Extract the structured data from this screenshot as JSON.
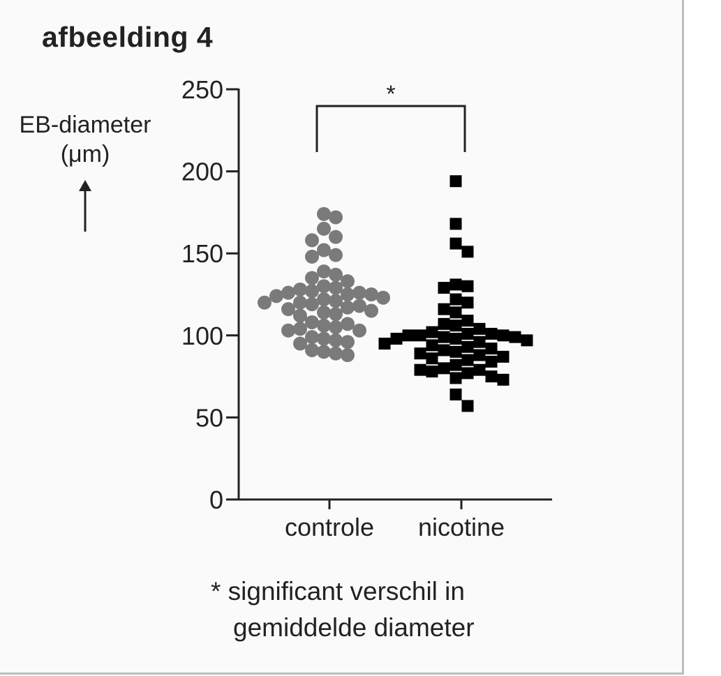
{
  "figure": {
    "title": "afbeelding 4",
    "footnote_line1": "* significant verschil in",
    "footnote_line2": "gemiddelde diameter"
  },
  "colors": {
    "controle": "#7a7a7a",
    "nicotine": "#000000",
    "text": "#222222"
  },
  "chart_data": {
    "type": "scatter",
    "ylabel_line1": "EB-diameter",
    "ylabel_line2": "(μm)",
    "ylim": [
      0,
      250
    ],
    "yticks": [
      0,
      50,
      100,
      150,
      200,
      250
    ],
    "categories": [
      "controle",
      "nicotine"
    ],
    "significance_label": "*",
    "series": [
      {
        "name": "controle",
        "marker": "circle",
        "values": [
          174,
          172,
          165,
          160,
          158,
          152,
          149,
          148,
          139,
          137,
          135,
          133,
          130,
          129,
          128,
          127,
          126,
          126,
          125,
          125,
          124,
          123,
          122,
          121,
          120,
          120,
          119,
          118,
          117,
          116,
          115,
          114,
          113,
          112,
          108,
          107,
          106,
          105,
          104,
          103,
          103,
          99,
          98,
          97,
          96,
          95,
          91,
          90,
          89,
          88
        ]
      },
      {
        "name": "nicotine",
        "marker": "square",
        "values": [
          194,
          168,
          156,
          151,
          131,
          130,
          129,
          122,
          120,
          116,
          114,
          109,
          107,
          106,
          104,
          102,
          101,
          101,
          100,
          100,
          100,
          99,
          99,
          98,
          98,
          97,
          96,
          95,
          94,
          93,
          92,
          91,
          90,
          89,
          88,
          87,
          86,
          85,
          84,
          82,
          80,
          79,
          79,
          78,
          77,
          75,
          74,
          73,
          64,
          57
        ]
      }
    ]
  }
}
